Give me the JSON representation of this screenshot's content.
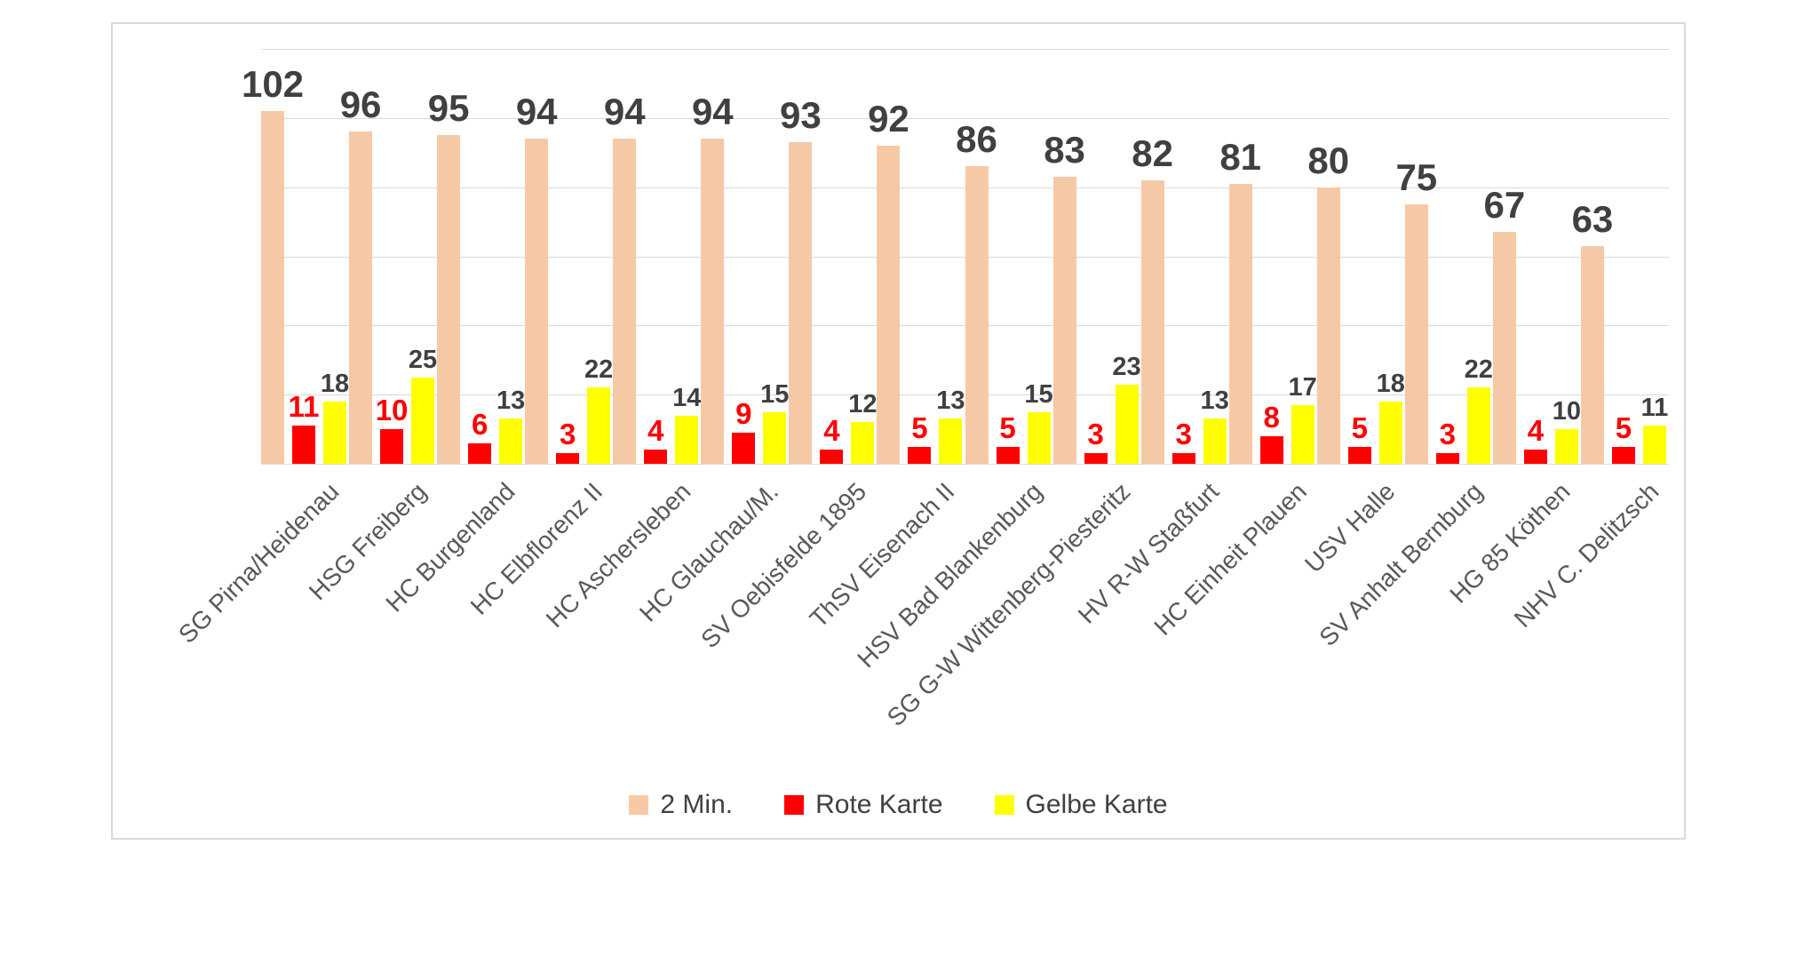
{
  "chart_data": {
    "type": "bar",
    "title": "",
    "categories": [
      "SG Pirna/Heidenau",
      "HSG Freiberg",
      "HC Burgenland",
      "HC Elbflorenz II",
      "HC Aschersleben",
      "HC Glauchau/M.",
      "SV Oebisfelde 1895",
      "ThSV Eisenach II",
      "HSV Bad Blankenburg",
      "SG G-W Wittenberg-Piesteritz",
      "HV R-W Staßfurt",
      "HC Einheit Plauen",
      "USV Halle",
      "SV Anhalt Bernburg",
      "HG 85 Köthen",
      "NHV C. Delitzsch"
    ],
    "series": [
      {
        "name": "2 Min.",
        "color": "#F6C9A6",
        "label_color": "#404040",
        "values": [
          102,
          96,
          95,
          94,
          94,
          94,
          93,
          92,
          86,
          83,
          82,
          81,
          80,
          75,
          67,
          63
        ]
      },
      {
        "name": "Rote Karte",
        "color": "#FF0000",
        "label_color": "#FF0000",
        "values": [
          11,
          10,
          6,
          3,
          4,
          9,
          4,
          5,
          5,
          3,
          3,
          8,
          5,
          3,
          4,
          5
        ]
      },
      {
        "name": "Gelbe Karte",
        "color": "#FFFF00",
        "label_color": "#404040",
        "values": [
          18,
          25,
          13,
          22,
          14,
          15,
          12,
          13,
          15,
          23,
          13,
          17,
          18,
          22,
          10,
          11
        ]
      }
    ],
    "ylim": [
      0,
      120
    ],
    "gridline_step": 20,
    "grid": true,
    "gridline_color": "#D9D9D9",
    "axis_label_color": "#595959",
    "legend_position": "bottom"
  }
}
